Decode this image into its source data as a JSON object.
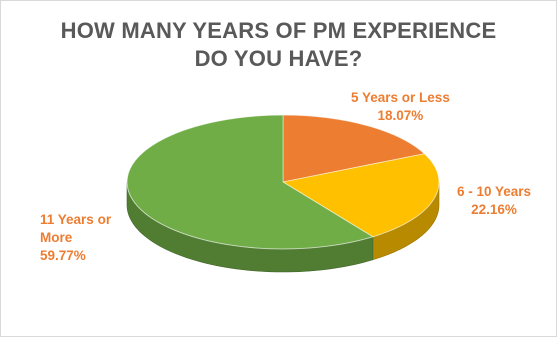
{
  "chart_data": {
    "type": "pie",
    "title_lines": [
      "HOW MANY YEARS OF PM EXPERIENCE",
      "DO YOU HAVE?"
    ],
    "slices": [
      {
        "label": "5 Years or Less",
        "value": 18.07,
        "value_label": "18.07%",
        "color": "#ED7D31"
      },
      {
        "label": "6 - 10 Years",
        "value": 22.16,
        "value_label": "22.16%",
        "color": "#FFC000"
      },
      {
        "label_lines": [
          "11 Years or",
          "More"
        ],
        "value": 59.77,
        "value_label": "59.77%",
        "color": "#70AD47"
      }
    ],
    "label_color": "#ED7D31",
    "style": "3d-pie"
  }
}
